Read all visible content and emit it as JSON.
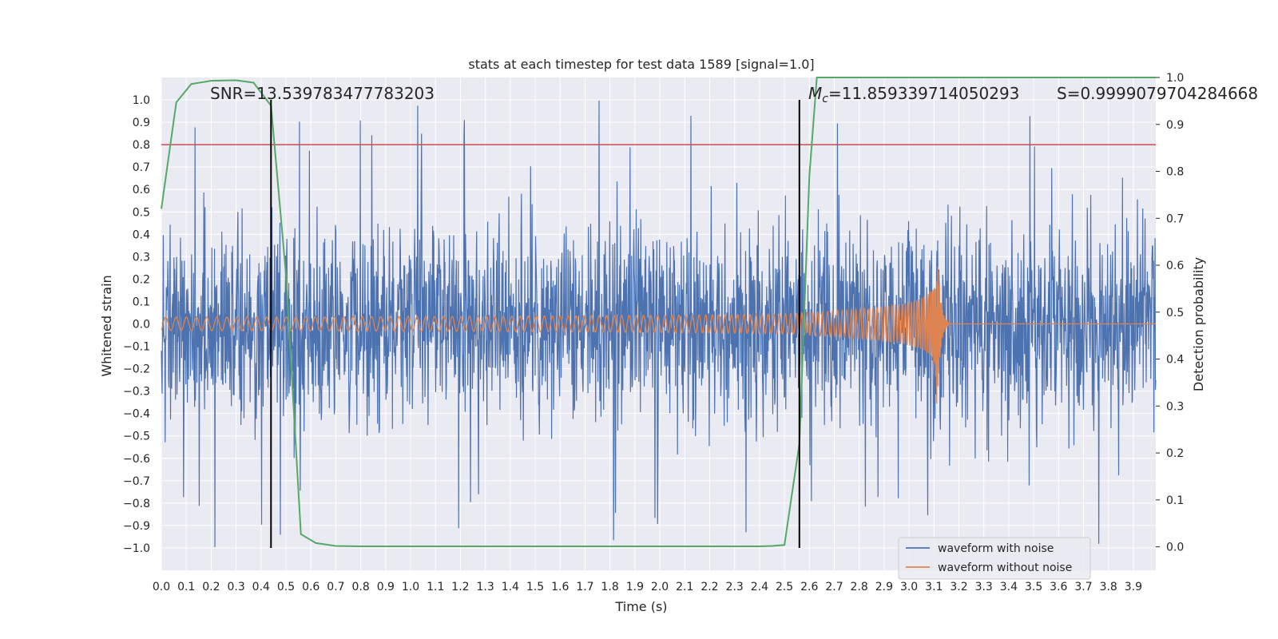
{
  "chart_data": {
    "type": "line",
    "title": "stats at each timestep for test data 1589 [signal=1.0]",
    "xlabel": "Time (s)",
    "ylabel_left": "Whitened strain",
    "ylabel_right": "Detection probability",
    "xlim": [
      0.0,
      3.99
    ],
    "ylim_left": [
      -1.1,
      1.1
    ],
    "ylim_right": [
      -0.05,
      1.0
    ],
    "x_ticks": [
      "0.0",
      "0.1",
      "0.2",
      "0.3",
      "0.4",
      "0.5",
      "0.6",
      "0.7",
      "0.8",
      "0.9",
      "1.0",
      "1.1",
      "1.2",
      "1.3",
      "1.4",
      "1.5",
      "1.6",
      "1.7",
      "1.8",
      "1.9",
      "2.0",
      "2.1",
      "2.2",
      "2.3",
      "2.4",
      "2.5",
      "2.6",
      "2.7",
      "2.8",
      "2.9",
      "3.0",
      "3.1",
      "3.2",
      "3.3",
      "3.4",
      "3.5",
      "3.6",
      "3.7",
      "3.8",
      "3.9"
    ],
    "y_ticks_left": [
      "1.0",
      "0.9",
      "0.8",
      "0.7",
      "0.6",
      "0.5",
      "0.4",
      "0.3",
      "0.2",
      "0.1",
      "0.0",
      "−0.1",
      "−0.2",
      "−0.3",
      "−0.4",
      "−0.5",
      "−0.6",
      "−0.7",
      "−0.8",
      "−0.9",
      "−1.0"
    ],
    "y_ticks_right": [
      "1.0",
      "0.9",
      "0.8",
      "0.7",
      "0.6",
      "0.5",
      "0.4",
      "0.3",
      "0.2",
      "0.1",
      "0.0"
    ],
    "series": [
      {
        "name": "waveform with noise",
        "color": "#4c72b0",
        "description": "whitened noisy strain, roughly within ±0.5 with peaks reaching about ±1.0"
      },
      {
        "name": "waveform without noise",
        "color": "#dd8452",
        "amp_start": 0.03,
        "amp_peak": 0.45,
        "t_merger": 3.11,
        "cycles_start_per_s": 24
      },
      {
        "name": "detection probability",
        "color": "#55a868",
        "axis": "right",
        "x": [
          0.0,
          0.06,
          0.12,
          0.2,
          0.3,
          0.37,
          0.44,
          0.5,
          0.56,
          0.62,
          0.7,
          0.8,
          1.5,
          2.0,
          2.4,
          2.45,
          2.5,
          2.56,
          2.6,
          2.63,
          2.7,
          3.0,
          3.5,
          3.99
        ],
        "values": [
          0.72,
          0.947,
          0.986,
          0.993,
          0.994,
          0.989,
          0.94,
          0.58,
          0.027,
          0.008,
          0.002,
          0.001,
          0.001,
          0.001,
          0.001,
          0.002,
          0.004,
          0.22,
          0.79,
          1.0,
          1.0,
          1.0,
          1.0,
          1.0
        ]
      }
    ],
    "threshold_line": {
      "value_left_axis": 0.8,
      "value_right": 0.9,
      "color": "#c44e52"
    },
    "vertical_markers": [
      0.44,
      2.56
    ],
    "annotations": {
      "snr": "SNR=13.539783477783203",
      "mc": "=11.859339714050293",
      "mc_symbol": "M",
      "mc_subscript": "c",
      "s": "S=0.9999079704284668"
    },
    "legend": {
      "position": "lower-right",
      "entries": [
        "waveform with noise",
        "waveform without noise"
      ]
    },
    "grid": true
  }
}
